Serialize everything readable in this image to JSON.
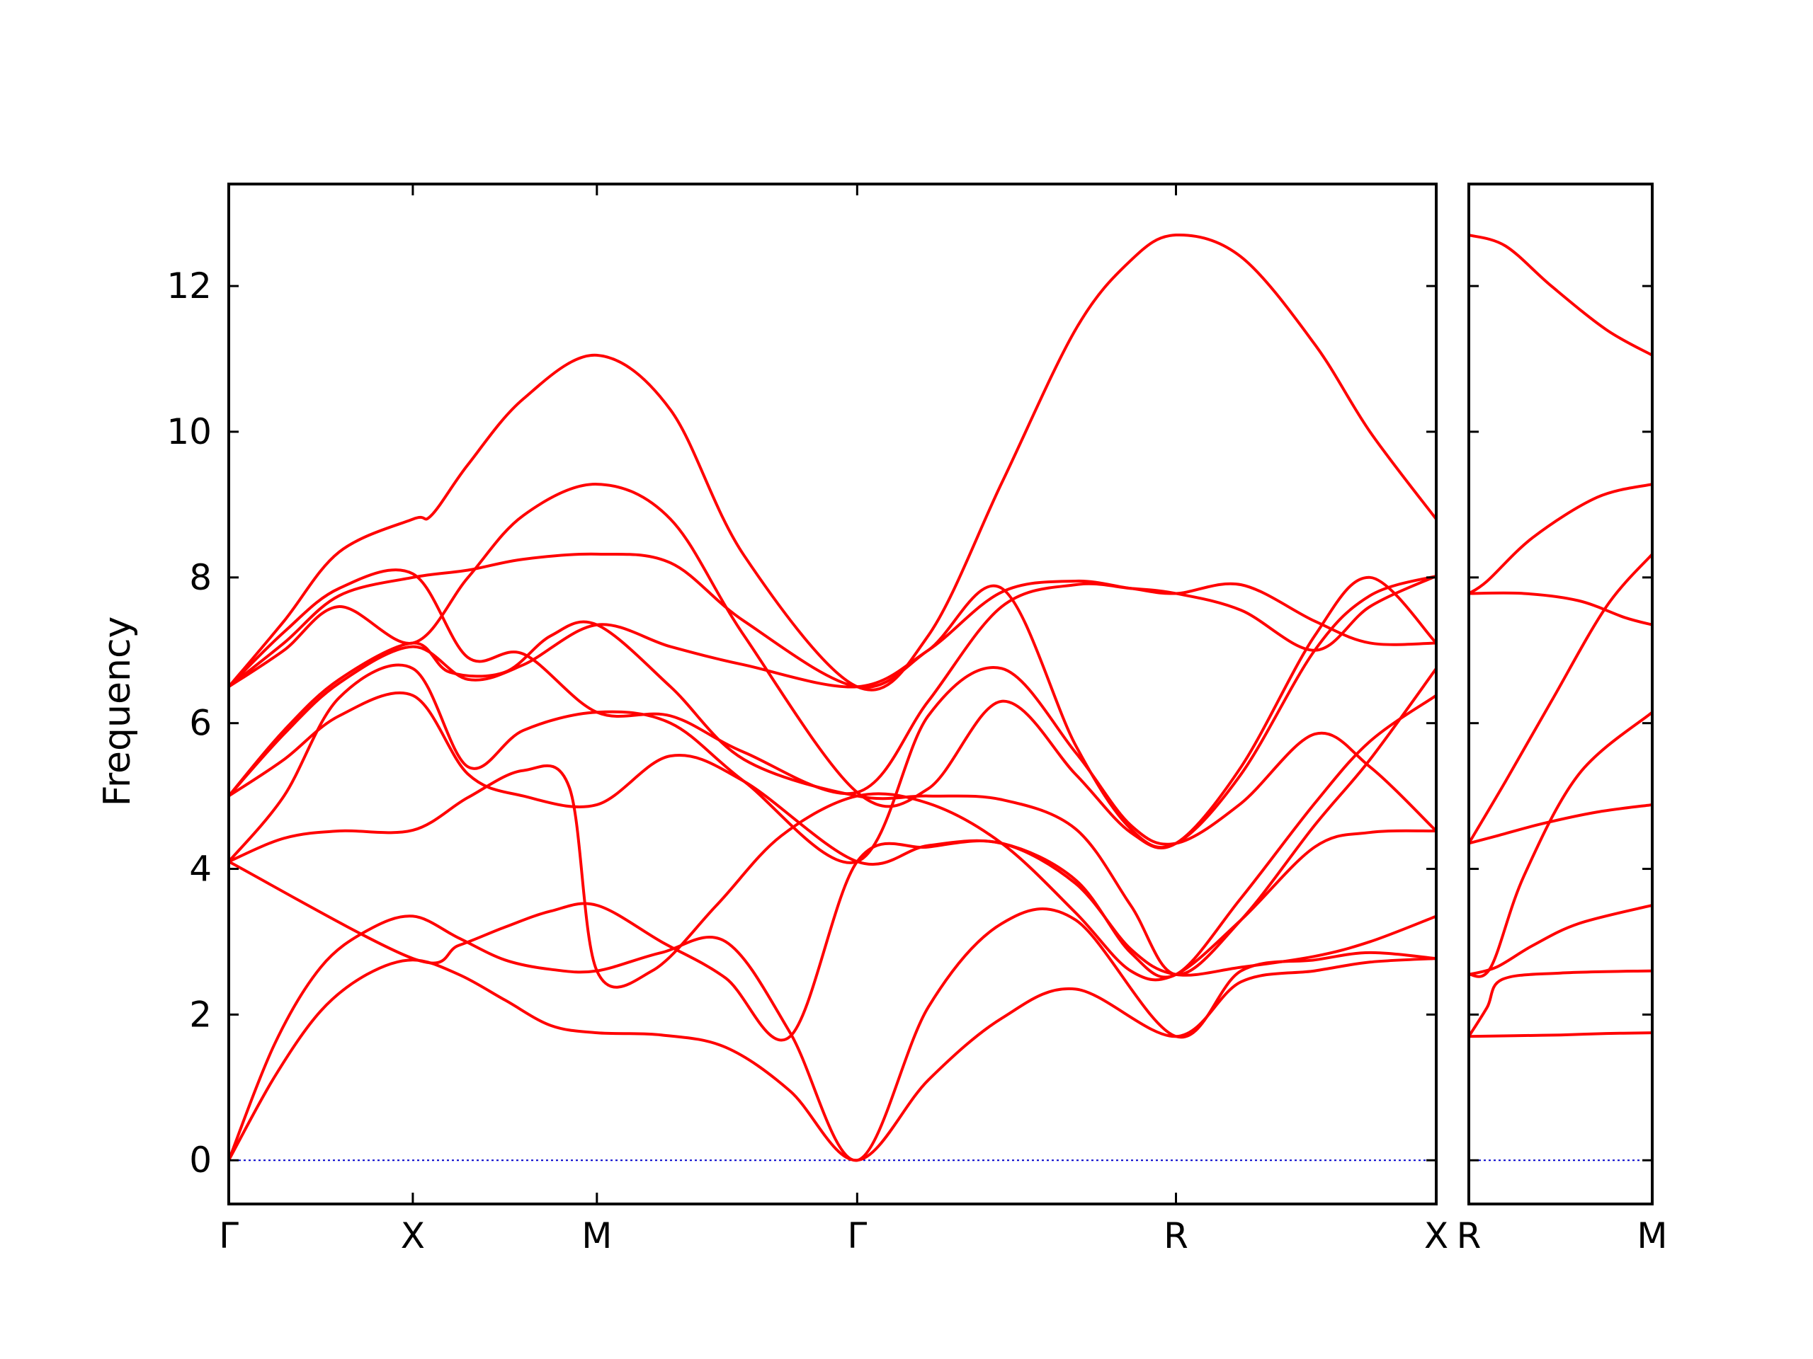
{
  "chart_data": {
    "type": "line",
    "title": "",
    "xlabel": "",
    "ylabel": "Frequency",
    "ylim": [
      -0.6,
      13.4
    ],
    "yticks": [
      0,
      2,
      4,
      6,
      8,
      10,
      12
    ],
    "grid": false,
    "colors": {
      "band": "#ff0000",
      "zero_line": "#0000cc",
      "frame": "#000000"
    },
    "panels": [
      {
        "x_range": [
          0,
          9
        ],
        "ticks": [
          {
            "x": 0,
            "label": "Γ"
          },
          {
            "x": 1,
            "label": "X"
          },
          {
            "x": 2,
            "label": "M"
          },
          {
            "x": 3.414,
            "label": "Γ"
          },
          {
            "x": 5.146,
            "label": "R"
          },
          {
            "x": 6.56,
            "label": "X"
          }
        ],
        "x_max": 6.56,
        "series": [
          {
            "x": [
              0,
              0.25,
              0.5,
              0.75,
              1,
              1.25,
              1.5,
              1.75,
              2,
              2.35,
              2.7,
              3.05,
              3.414,
              3.8,
              4.2,
              4.6,
              5.146,
              5.5,
              5.9,
              6.2,
              6.56
            ],
            "y": [
              0,
              1.15,
              2.05,
              2.55,
              2.75,
              2.55,
              2.2,
              1.85,
              1.75,
              1.72,
              1.55,
              0.95,
              0,
              1.1,
              1.95,
              2.35,
              1.7,
              2.45,
              2.6,
              2.72,
              2.77
            ]
          },
          {
            "x": [
              0,
              0.25,
              0.5,
              0.75,
              1,
              1.25,
              1.5,
              1.75,
              2,
              2.35,
              2.7,
              3.05,
              3.414,
              3.8,
              4.2,
              4.6,
              5.146,
              5.5,
              5.9,
              6.2,
              6.56
            ],
            "y": [
              0,
              1.6,
              2.65,
              3.15,
              3.35,
              3.05,
              2.75,
              2.62,
              2.6,
              2.85,
              3.0,
              1.75,
              0,
              2.1,
              3.25,
              3.3,
              1.7,
              2.6,
              2.75,
              2.85,
              2.77
            ]
          },
          {
            "x": [
              0,
              1,
              1.25,
              1.5,
              1.75,
              2,
              2.35,
              2.7,
              3.05,
              3.414,
              3.8,
              4.2,
              4.6,
              4.9,
              5.146,
              5.5,
              5.9,
              6.2,
              6.56
            ],
            "y": [
              4.1,
              2.77,
              2.95,
              3.2,
              3.42,
              3.5,
              3.0,
              2.5,
              1.7,
              4.1,
              4.3,
              4.35,
              3.8,
              2.9,
              2.55,
              2.65,
              2.8,
              3.0,
              3.35
            ]
          },
          {
            "x": [
              0,
              0.3,
              0.6,
              1,
              1.3,
              1.6,
              1.85,
              2,
              2.3,
              2.65,
              3.0,
              3.414,
              3.8,
              4.2,
              4.6,
              4.9,
              5.146,
              5.5,
              5.9,
              6.2,
              6.56
            ],
            "y": [
              4.1,
              4.42,
              4.52,
              4.53,
              4.98,
              5.35,
              5.12,
              2.6,
              2.6,
              3.5,
              4.45,
              5.0,
              4.9,
              4.35,
              3.4,
              2.6,
              2.55,
              3.3,
              4.3,
              4.5,
              4.52
            ]
          },
          {
            "x": [
              0,
              0.3,
              0.6,
              1,
              1.3,
              1.6,
              2,
              2.4,
              2.8,
              3.414,
              3.8,
              4.2,
              4.6,
              4.9,
              5.146,
              5.5,
              5.9,
              6.2,
              6.56
            ],
            "y": [
              5.0,
              5.5,
              6.1,
              6.38,
              5.3,
              5.0,
              4.88,
              5.55,
              5.2,
              4.1,
              4.32,
              4.35,
              3.85,
              2.85,
              2.55,
              3.6,
              4.9,
              5.75,
              6.38
            ]
          },
          {
            "x": [
              0,
              0.3,
              0.6,
              1,
              1.3,
              1.6,
              2,
              2.4,
              2.8,
              3.414,
              3.8,
              4.2,
              4.6,
              4.9,
              5.146,
              5.5,
              5.9,
              6.2,
              6.56
            ],
            "y": [
              4.1,
              5.0,
              6.35,
              6.75,
              5.4,
              5.9,
              6.15,
              6.0,
              5.2,
              4.1,
              6.1,
              6.75,
              5.6,
              4.6,
              4.35,
              4.9,
              5.85,
              5.4,
              4.52
            ]
          },
          {
            "x": [
              0,
              0.3,
              0.6,
              1,
              1.2,
              1.5,
              1.75,
              2,
              2.4,
              2.8,
              3.414,
              3.8,
              4.2,
              4.6,
              4.9,
              5.146,
              5.5,
              5.9,
              6.2,
              6.56
            ],
            "y": [
              5.0,
              5.9,
              6.6,
              7.1,
              6.7,
              6.7,
              7.2,
              7.35,
              6.5,
              5.5,
              5.0,
              5.0,
              4.95,
              4.55,
              3.5,
              2.55,
              3.3,
              4.6,
              5.5,
              6.75
            ]
          },
          {
            "x": [
              0,
              0.3,
              0.6,
              1,
              1.3,
              1.6,
              2,
              2.4,
              2.8,
              3.414,
              3.8,
              4.2,
              4.6,
              4.9,
              5.146,
              5.5,
              5.9,
              6.2,
              6.56
            ],
            "y": [
              5.0,
              5.85,
              6.55,
              7.05,
              6.6,
              6.8,
              7.35,
              7.05,
              6.8,
              6.5,
              7.0,
              7.8,
              7.95,
              7.85,
              7.78,
              7.9,
              7.4,
              7.1,
              7.1
            ]
          },
          {
            "x": [
              0,
              0.3,
              0.6,
              1,
              1.3,
              1.6,
              2,
              2.4,
              2.8,
              3.414,
              3.8,
              4.2,
              4.6,
              4.9,
              5.146,
              5.5,
              5.9,
              6.2,
              6.56
            ],
            "y": [
              6.5,
              7.25,
              7.85,
              8.05,
              6.9,
              6.95,
              6.15,
              6.1,
              5.6,
              5.05,
              6.3,
              7.6,
              7.9,
              7.85,
              7.78,
              7.55,
              7.0,
              7.6,
              8.02
            ]
          },
          {
            "x": [
              0,
              0.3,
              0.6,
              1,
              1.3,
              1.6,
              2,
              2.4,
              2.8,
              3.414,
              3.8,
              4.2,
              4.6,
              4.9,
              5.146,
              5.5,
              5.9,
              6.2,
              6.56
            ],
            "y": [
              6.5,
              7.1,
              7.75,
              8.0,
              8.1,
              8.25,
              8.32,
              8.2,
              7.4,
              6.5,
              7.0,
              7.85,
              5.7,
              4.55,
              4.35,
              5.3,
              7.0,
              7.75,
              8.02
            ]
          },
          {
            "x": [
              0,
              0.3,
              0.6,
              1,
              1.3,
              1.6,
              2,
              2.4,
              2.8,
              3.414,
              3.8,
              4.2,
              4.6,
              4.9,
              5.146,
              5.5,
              5.9,
              6.2,
              6.56
            ],
            "y": [
              6.5,
              7.0,
              7.6,
              7.1,
              8.0,
              8.85,
              9.28,
              8.8,
              7.2,
              5.05,
              5.1,
              6.3,
              5.3,
              4.5,
              4.35,
              5.4,
              7.2,
              8.0,
              7.1
            ]
          },
          {
            "x": [
              0,
              0.3,
              0.6,
              1,
              1.1,
              1.3,
              1.6,
              2,
              2.4,
              2.8,
              3.414,
              3.8,
              4.2,
              4.6,
              4.9,
              5.146,
              5.5,
              5.9,
              6.2,
              6.56
            ],
            "y": [
              6.5,
              7.4,
              8.35,
              8.8,
              8.85,
              9.55,
              10.45,
              11.05,
              10.3,
              8.3,
              6.5,
              7.2,
              9.3,
              11.4,
              12.35,
              12.7,
              12.4,
              11.2,
              10.0,
              8.8
            ]
          }
        ]
      },
      {
        "x_range": [
          0,
          1
        ],
        "ticks": [
          {
            "x": 0,
            "label": "R"
          },
          {
            "x": 1,
            "label": "M"
          }
        ],
        "x_max": 1,
        "series": [
          {
            "x": [
              0,
              0.25,
              0.5,
              0.75,
              1
            ],
            "y": [
              1.7,
              1.71,
              1.72,
              1.74,
              1.75
            ]
          },
          {
            "x": [
              0,
              0.1,
              0.18,
              0.5,
              1
            ],
            "y": [
              1.7,
              2.1,
              2.48,
              2.57,
              2.6
            ]
          },
          {
            "x": [
              0,
              0.15,
              0.35,
              0.6,
              1
            ],
            "y": [
              2.55,
              2.65,
              2.95,
              3.25,
              3.5
            ]
          },
          {
            "x": [
              0,
              0.12,
              0.3,
              0.6,
              1
            ],
            "y": [
              2.55,
              2.65,
              3.9,
              5.3,
              6.15
            ]
          },
          {
            "x": [
              0,
              0.15,
              0.4,
              0.7,
              1
            ],
            "y": [
              4.35,
              4.45,
              4.62,
              4.78,
              4.88
            ]
          },
          {
            "x": [
              0,
              0.2,
              0.45,
              0.75,
              1
            ],
            "y": [
              4.35,
              5.2,
              6.3,
              7.6,
              8.32
            ]
          },
          {
            "x": [
              0,
              0.3,
              0.6,
              0.85,
              1
            ],
            "y": [
              7.78,
              7.78,
              7.68,
              7.45,
              7.35
            ]
          },
          {
            "x": [
              0,
              0.1,
              0.35,
              0.7,
              1
            ],
            "y": [
              7.78,
              7.95,
              8.55,
              9.1,
              9.28
            ]
          },
          {
            "x": [
              0,
              0.2,
              0.45,
              0.75,
              1
            ],
            "y": [
              12.7,
              12.55,
              12.0,
              11.4,
              11.05
            ]
          }
        ]
      }
    ]
  }
}
